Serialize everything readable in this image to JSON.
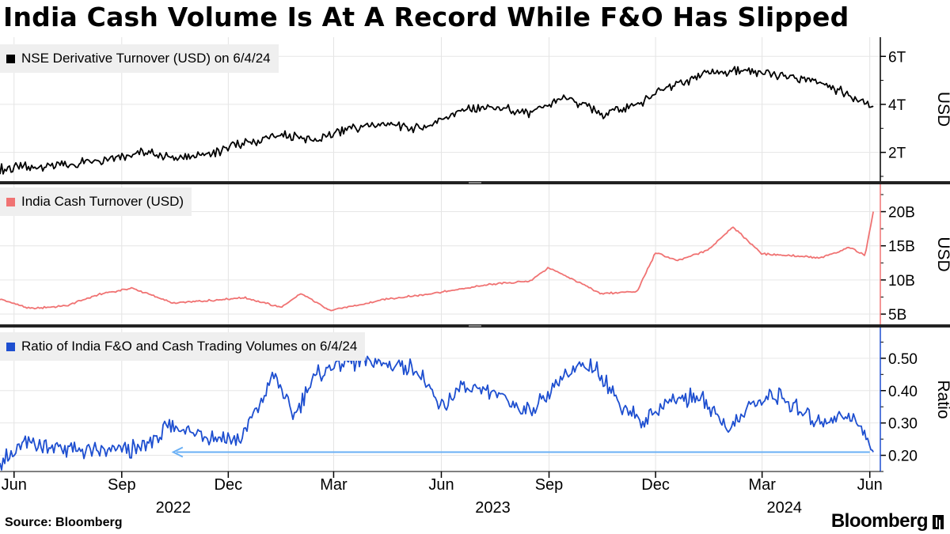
{
  "title": "India Cash Volume Is At A Record While F&O Has Slipped",
  "source": "Source: Bloomberg",
  "brand": "Bloomberg",
  "x_axis": {
    "ticks": [
      {
        "label": "Jun",
        "date": "2022-06-01"
      },
      {
        "label": "Sep",
        "date": "2022-09-01"
      },
      {
        "label": "Dec",
        "date": "2022-12-01"
      },
      {
        "label": "Mar",
        "date": "2023-03-01"
      },
      {
        "label": "Jun",
        "date": "2023-06-01"
      },
      {
        "label": "Sep",
        "date": "2023-09-01"
      },
      {
        "label": "Dec",
        "date": "2023-12-01"
      },
      {
        "label": "Mar",
        "date": "2024-03-01"
      },
      {
        "label": "Jun",
        "date": "2024-06-01"
      }
    ],
    "years": [
      {
        "label": "2022",
        "date": "2022-10-15"
      },
      {
        "label": "2023",
        "date": "2023-07-15"
      },
      {
        "label": "2024",
        "date": "2024-03-20"
      }
    ]
  },
  "chart_data": [
    {
      "type": "line",
      "name": "NSE Derivative Turnover (USD) on 6/4/24",
      "color": "#000000",
      "ylabel": "USD",
      "ylim": [
        0.8,
        6.8
      ],
      "yticks": [
        {
          "v": 2,
          "label": "2T"
        },
        {
          "v": 4,
          "label": "4T"
        },
        {
          "v": 6,
          "label": "6T"
        }
      ],
      "x": [
        "2022-05-20",
        "2022-06-15",
        "2022-07-15",
        "2022-08-15",
        "2022-09-15",
        "2022-10-15",
        "2022-11-15",
        "2022-12-15",
        "2023-01-15",
        "2023-02-15",
        "2023-03-15",
        "2023-04-15",
        "2023-05-15",
        "2023-06-15",
        "2023-07-15",
        "2023-08-15",
        "2023-09-15",
        "2023-10-15",
        "2023-11-15",
        "2023-12-15",
        "2024-01-15",
        "2024-02-15",
        "2024-03-15",
        "2024-04-15",
        "2024-05-15",
        "2024-06-04"
      ],
      "values": [
        1.3,
        1.4,
        1.5,
        1.7,
        2.0,
        1.8,
        1.9,
        2.4,
        2.7,
        2.5,
        3.0,
        3.2,
        3.0,
        3.7,
        3.9,
        3.6,
        4.3,
        3.6,
        4.0,
        4.8,
        5.3,
        5.4,
        5.2,
        5.0,
        4.4,
        3.9
      ]
    },
    {
      "type": "line",
      "name": "India Cash Turnover (USD)",
      "color": "#f07373",
      "ylabel": "USD",
      "ylim": [
        3.5,
        24
      ],
      "yticks": [
        {
          "v": 5,
          "label": "5B"
        },
        {
          "v": 10,
          "label": "10B"
        },
        {
          "v": 15,
          "label": "15B"
        },
        {
          "v": 20,
          "label": "20B"
        }
      ],
      "x": [
        "2022-05-20",
        "2022-06-15",
        "2022-07-15",
        "2022-08-15",
        "2022-09-10",
        "2022-10-15",
        "2022-11-15",
        "2022-12-15",
        "2023-01-15",
        "2023-02-01",
        "2023-02-25",
        "2023-03-20",
        "2023-04-15",
        "2023-05-15",
        "2023-06-15",
        "2023-07-15",
        "2023-08-15",
        "2023-09-01",
        "2023-09-20",
        "2023-10-15",
        "2023-11-15",
        "2023-12-01",
        "2023-12-20",
        "2024-01-15",
        "2024-02-05",
        "2024-03-01",
        "2024-03-25",
        "2024-04-20",
        "2024-05-15",
        "2024-05-28",
        "2024-06-04"
      ],
      "values": [
        7.2,
        5.8,
        6.2,
        8.0,
        8.8,
        6.6,
        7.0,
        7.4,
        6.0,
        8.0,
        5.6,
        6.2,
        7.2,
        7.8,
        8.6,
        9.4,
        9.8,
        11.8,
        10.2,
        8.0,
        8.3,
        14.0,
        12.8,
        14.4,
        17.8,
        13.8,
        13.6,
        13.2,
        14.8,
        13.6,
        20.0
      ]
    },
    {
      "type": "line",
      "name": "Ratio of India F&O and Cash Trading Volumes on 6/4/24",
      "color": "#1e4fd0",
      "ylabel": "Ratio",
      "ylim": [
        0.15,
        0.595
      ],
      "yticks": [
        {
          "v": 0.2,
          "label": "0.20"
        },
        {
          "v": 0.3,
          "label": "0.30"
        },
        {
          "v": 0.4,
          "label": "0.40"
        },
        {
          "v": 0.5,
          "label": "0.50"
        }
      ],
      "x": [
        "2022-05-20",
        "2022-06-15",
        "2022-07-15",
        "2022-08-15",
        "2022-09-15",
        "2022-10-15",
        "2022-11-15",
        "2022-12-10",
        "2022-12-25",
        "2023-01-10",
        "2023-01-25",
        "2023-02-15",
        "2023-03-15",
        "2023-04-15",
        "2023-05-10",
        "2023-06-01",
        "2023-06-20",
        "2023-07-15",
        "2023-08-15",
        "2023-09-15",
        "2023-10-10",
        "2023-11-01",
        "2023-11-20",
        "2023-12-10",
        "2024-01-10",
        "2024-02-01",
        "2024-02-20",
        "2024-03-15",
        "2024-04-15",
        "2024-05-15",
        "2024-05-25",
        "2024-06-04"
      ],
      "values": [
        0.18,
        0.24,
        0.22,
        0.21,
        0.22,
        0.29,
        0.26,
        0.25,
        0.34,
        0.45,
        0.32,
        0.45,
        0.49,
        0.48,
        0.47,
        0.35,
        0.41,
        0.4,
        0.33,
        0.45,
        0.48,
        0.36,
        0.3,
        0.37,
        0.38,
        0.28,
        0.35,
        0.39,
        0.3,
        0.33,
        0.28,
        0.21
      ]
    }
  ],
  "annotation": {
    "type": "arrow",
    "series": 2,
    "value": 0.21,
    "from": "2024-06-01",
    "to": "2022-10-15",
    "color": "#6ab0f5"
  }
}
